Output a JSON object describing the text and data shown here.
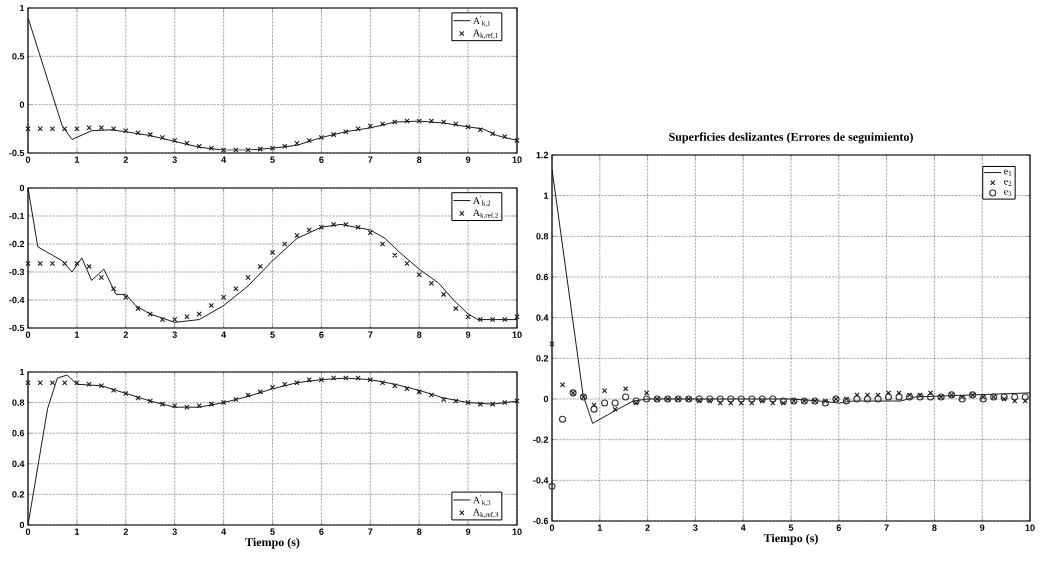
{
  "chart_data": [
    {
      "type": "line",
      "xlim": [
        0,
        10
      ],
      "ylim": [
        -0.5,
        1
      ],
      "xticks": [
        0,
        1,
        2,
        3,
        4,
        5,
        6,
        7,
        8,
        9,
        10
      ],
      "yticks": [
        -0.5,
        0,
        0.5,
        1
      ],
      "grid": true,
      "legend": "top right",
      "series": [
        {
          "name": "A$^{'}$$_{k,1}$",
          "type": "line",
          "line_style": "solid",
          "color": "#000000",
          "x": [
            0,
            0.7,
            0.9,
            1.3,
            1.7,
            2,
            2.5,
            3,
            3.5,
            4,
            4.5,
            5,
            5.5,
            6,
            6.5,
            7,
            7.5,
            8,
            8.5,
            9,
            9.3,
            9.6,
            10
          ],
          "values": [
            0.9,
            -0.22,
            -0.36,
            -0.27,
            -0.26,
            -0.28,
            -0.32,
            -0.38,
            -0.44,
            -0.47,
            -0.47,
            -0.45,
            -0.42,
            -0.34,
            -0.28,
            -0.24,
            -0.18,
            -0.17,
            -0.19,
            -0.23,
            -0.25,
            -0.32,
            -0.37
          ]
        },
        {
          "name": "A$_{k,ref,1}$",
          "type": "scatter",
          "marker": "cross",
          "color": "#1a1a1a",
          "x": [
            0,
            0.25,
            0.5,
            0.75,
            1,
            1.25,
            1.5,
            1.75,
            2,
            2.25,
            2.5,
            2.75,
            3,
            3.25,
            3.5,
            3.75,
            4,
            4.25,
            4.5,
            4.75,
            5,
            5.25,
            5.5,
            5.75,
            6,
            6.25,
            6.5,
            6.75,
            7,
            7.25,
            7.5,
            7.75,
            8,
            8.25,
            8.5,
            8.75,
            9,
            9.25,
            9.5,
            9.75,
            10
          ],
          "values": [
            -0.25,
            -0.25,
            -0.25,
            -0.25,
            -0.25,
            -0.24,
            -0.24,
            -0.25,
            -0.27,
            -0.29,
            -0.31,
            -0.34,
            -0.37,
            -0.4,
            -0.43,
            -0.45,
            -0.47,
            -0.47,
            -0.47,
            -0.46,
            -0.45,
            -0.43,
            -0.4,
            -0.37,
            -0.34,
            -0.31,
            -0.28,
            -0.25,
            -0.22,
            -0.2,
            -0.18,
            -0.17,
            -0.17,
            -0.17,
            -0.18,
            -0.2,
            -0.23,
            -0.26,
            -0.3,
            -0.33,
            -0.37
          ]
        }
      ]
    },
    {
      "type": "line",
      "xlim": [
        0,
        10
      ],
      "ylim": [
        -0.5,
        0
      ],
      "xticks": [
        0,
        1,
        2,
        3,
        4,
        5,
        6,
        7,
        8,
        9,
        10
      ],
      "yticks": [
        -0.5,
        -0.4,
        -0.3,
        -0.2,
        -0.1,
        0
      ],
      "grid": true,
      "legend": "top right",
      "series": [
        {
          "name": "A$^{'}$$_{k,2}$",
          "type": "line",
          "line_style": "solid",
          "color": "#000000",
          "x": [
            0,
            0.2,
            0.5,
            0.7,
            0.9,
            1.1,
            1.3,
            1.55,
            1.8,
            2,
            2.2,
            2.5,
            3,
            3.5,
            4,
            4.5,
            5,
            5.5,
            6,
            6.4,
            7,
            7.3,
            7.6,
            8,
            8.4,
            8.7,
            9,
            9.2,
            10
          ],
          "values": [
            0,
            -0.21,
            -0.24,
            -0.26,
            -0.3,
            -0.25,
            -0.33,
            -0.29,
            -0.38,
            -0.38,
            -0.42,
            -0.45,
            -0.48,
            -0.47,
            -0.42,
            -0.35,
            -0.26,
            -0.18,
            -0.14,
            -0.13,
            -0.15,
            -0.18,
            -0.23,
            -0.29,
            -0.34,
            -0.4,
            -0.45,
            -0.47,
            -0.47
          ]
        },
        {
          "name": "A$_{k,ref,2}$",
          "type": "scatter",
          "marker": "cross",
          "color": "#1a1a1a",
          "x": [
            0,
            0.25,
            0.5,
            0.75,
            1,
            1.25,
            1.5,
            1.75,
            2,
            2.25,
            2.5,
            2.75,
            3,
            3.25,
            3.5,
            3.75,
            4,
            4.25,
            4.5,
            4.75,
            5,
            5.25,
            5.5,
            5.75,
            6,
            6.25,
            6.5,
            6.75,
            7,
            7.25,
            7.5,
            7.75,
            8,
            8.25,
            8.5,
            8.75,
            9,
            9.25,
            9.5,
            9.75,
            10
          ],
          "values": [
            -0.27,
            -0.27,
            -0.27,
            -0.27,
            -0.27,
            -0.28,
            -0.32,
            -0.36,
            -0.39,
            -0.43,
            -0.45,
            -0.47,
            -0.47,
            -0.46,
            -0.45,
            -0.42,
            -0.39,
            -0.36,
            -0.32,
            -0.28,
            -0.23,
            -0.2,
            -0.17,
            -0.15,
            -0.14,
            -0.13,
            -0.13,
            -0.14,
            -0.16,
            -0.2,
            -0.24,
            -0.27,
            -0.31,
            -0.34,
            -0.38,
            -0.43,
            -0.46,
            -0.47,
            -0.47,
            -0.47,
            -0.46
          ]
        }
      ]
    },
    {
      "type": "line",
      "xlabel": "Tiempo (s)",
      "xlim": [
        0,
        10
      ],
      "ylim": [
        0,
        1
      ],
      "xticks": [
        0,
        1,
        2,
        3,
        4,
        5,
        6,
        7,
        8,
        9,
        10
      ],
      "yticks": [
        0,
        0.2,
        0.4,
        0.6,
        0.8,
        1
      ],
      "grid": true,
      "legend": "bottom right",
      "series": [
        {
          "name": "A$^{'}$$_{k,3}$",
          "type": "line",
          "line_style": "solid",
          "color": "#000000",
          "x": [
            0,
            0.4,
            0.6,
            0.8,
            1,
            1.5,
            2,
            2.5,
            3,
            3.5,
            4,
            4.5,
            5,
            5.5,
            6,
            6.5,
            7,
            7.5,
            8,
            8.5,
            9,
            9.5,
            10
          ],
          "values": [
            0,
            0.76,
            0.96,
            0.98,
            0.92,
            0.91,
            0.86,
            0.81,
            0.77,
            0.77,
            0.8,
            0.84,
            0.89,
            0.93,
            0.95,
            0.96,
            0.95,
            0.92,
            0.88,
            0.83,
            0.8,
            0.79,
            0.81
          ]
        },
        {
          "name": "A$_{k,ref,3}$",
          "type": "scatter",
          "marker": "cross",
          "color": "#1a1a1a",
          "x": [
            0,
            0.25,
            0.5,
            0.75,
            1,
            1.25,
            1.5,
            1.75,
            2,
            2.25,
            2.5,
            2.75,
            3,
            3.25,
            3.5,
            3.75,
            4,
            4.25,
            4.5,
            4.75,
            5,
            5.25,
            5.5,
            5.75,
            6,
            6.25,
            6.5,
            6.75,
            7,
            7.25,
            7.5,
            7.75,
            8,
            8.25,
            8.5,
            8.75,
            9,
            9.25,
            9.5,
            9.75,
            10
          ],
          "values": [
            0.93,
            0.93,
            0.93,
            0.93,
            0.93,
            0.92,
            0.91,
            0.88,
            0.86,
            0.83,
            0.81,
            0.79,
            0.78,
            0.77,
            0.78,
            0.79,
            0.8,
            0.82,
            0.85,
            0.87,
            0.9,
            0.92,
            0.93,
            0.95,
            0.95,
            0.96,
            0.96,
            0.96,
            0.95,
            0.93,
            0.91,
            0.89,
            0.87,
            0.85,
            0.82,
            0.81,
            0.8,
            0.79,
            0.79,
            0.8,
            0.81
          ]
        }
      ]
    },
    {
      "type": "line",
      "title": "Superficies deslizantes (Errores de seguimiento)",
      "xlabel": "Tiempo (s)",
      "xlim": [
        0,
        10
      ],
      "ylim": [
        -0.6,
        1.2
      ],
      "xticks": [
        0,
        1,
        2,
        3,
        4,
        5,
        6,
        7,
        8,
        9,
        10
      ],
      "yticks": [
        -0.6,
        -0.4,
        -0.2,
        0,
        0.2,
        0.4,
        0.6,
        0.8,
        1,
        1.2
      ],
      "grid": true,
      "legend": "top right",
      "series": [
        {
          "name": "e$_{1}$",
          "type": "line",
          "line_style": "solid",
          "color": "#000000",
          "x": [
            0,
            0.65,
            0.85,
            1,
            1.3,
            1.7,
            2,
            5,
            5.6,
            6,
            6.3,
            7.3,
            7.6,
            10
          ],
          "values": [
            1.13,
            0.02,
            -0.12,
            -0.1,
            -0.06,
            -0.01,
            0,
            0,
            -0.01,
            -0.02,
            -0.01,
            -0.01,
            0.01,
            0.03
          ]
        },
        {
          "name": "e$_{2}$",
          "type": "scatter",
          "marker": "cross",
          "color": "#1a1a1a",
          "x": [
            0,
            0.22,
            0.44,
            0.66,
            0.88,
            1.1,
            1.32,
            1.54,
            1.76,
            1.98,
            2.2,
            2.42,
            2.64,
            2.86,
            3.08,
            3.3,
            3.52,
            3.74,
            3.96,
            4.18,
            4.4,
            4.62,
            4.84,
            5.06,
            5.28,
            5.5,
            5.72,
            5.94,
            6.16,
            6.38,
            6.6,
            6.82,
            7.04,
            7.26,
            7.48,
            7.7,
            7.92,
            8.14,
            8.36,
            8.58,
            8.8,
            9.02,
            9.24,
            9.46,
            9.68,
            9.9
          ],
          "values": [
            0.27,
            0.07,
            0.03,
            0.01,
            -0.03,
            0.04,
            -0.05,
            0.05,
            -0.02,
            0.03,
            0,
            0,
            0,
            0,
            -0.01,
            -0.01,
            -0.02,
            -0.02,
            -0.02,
            -0.02,
            -0.01,
            -0.02,
            -0.02,
            -0.01,
            -0.01,
            -0.01,
            -0.01,
            0,
            0,
            0.02,
            0.02,
            0.02,
            0.03,
            0.03,
            0.02,
            0.02,
            0.03,
            0.01,
            0.02,
            0.01,
            0.02,
            0.01,
            0.01,
            0,
            -0.01,
            -0.01
          ]
        },
        {
          "name": "e$_{3}$",
          "type": "scatter",
          "marker": "circle",
          "color": "#333333",
          "x": [
            0,
            0.22,
            0.44,
            0.66,
            0.88,
            1.1,
            1.32,
            1.54,
            1.76,
            1.98,
            2.2,
            2.42,
            2.64,
            2.86,
            3.08,
            3.3,
            3.52,
            3.74,
            3.96,
            4.18,
            4.4,
            4.62,
            4.84,
            5.06,
            5.28,
            5.5,
            5.72,
            5.94,
            6.16,
            6.38,
            6.6,
            6.82,
            7.04,
            7.26,
            7.48,
            7.7,
            7.92,
            8.14,
            8.36,
            8.58,
            8.8,
            9.02,
            9.24,
            9.46,
            9.68,
            9.9
          ],
          "values": [
            -0.43,
            -0.1,
            0.03,
            0.01,
            -0.05,
            -0.02,
            -0.02,
            0.01,
            -0.01,
            0,
            0,
            0,
            0,
            0,
            0,
            0,
            0,
            0,
            0,
            0,
            0,
            0,
            -0.01,
            -0.01,
            -0.01,
            -0.01,
            -0.02,
            0,
            -0.01,
            0,
            0,
            0,
            0.01,
            0.01,
            0.01,
            0.01,
            0.01,
            0.01,
            0.02,
            0,
            0.02,
            0,
            0.01,
            0.01,
            0.01,
            0.01
          ]
        }
      ]
    }
  ]
}
